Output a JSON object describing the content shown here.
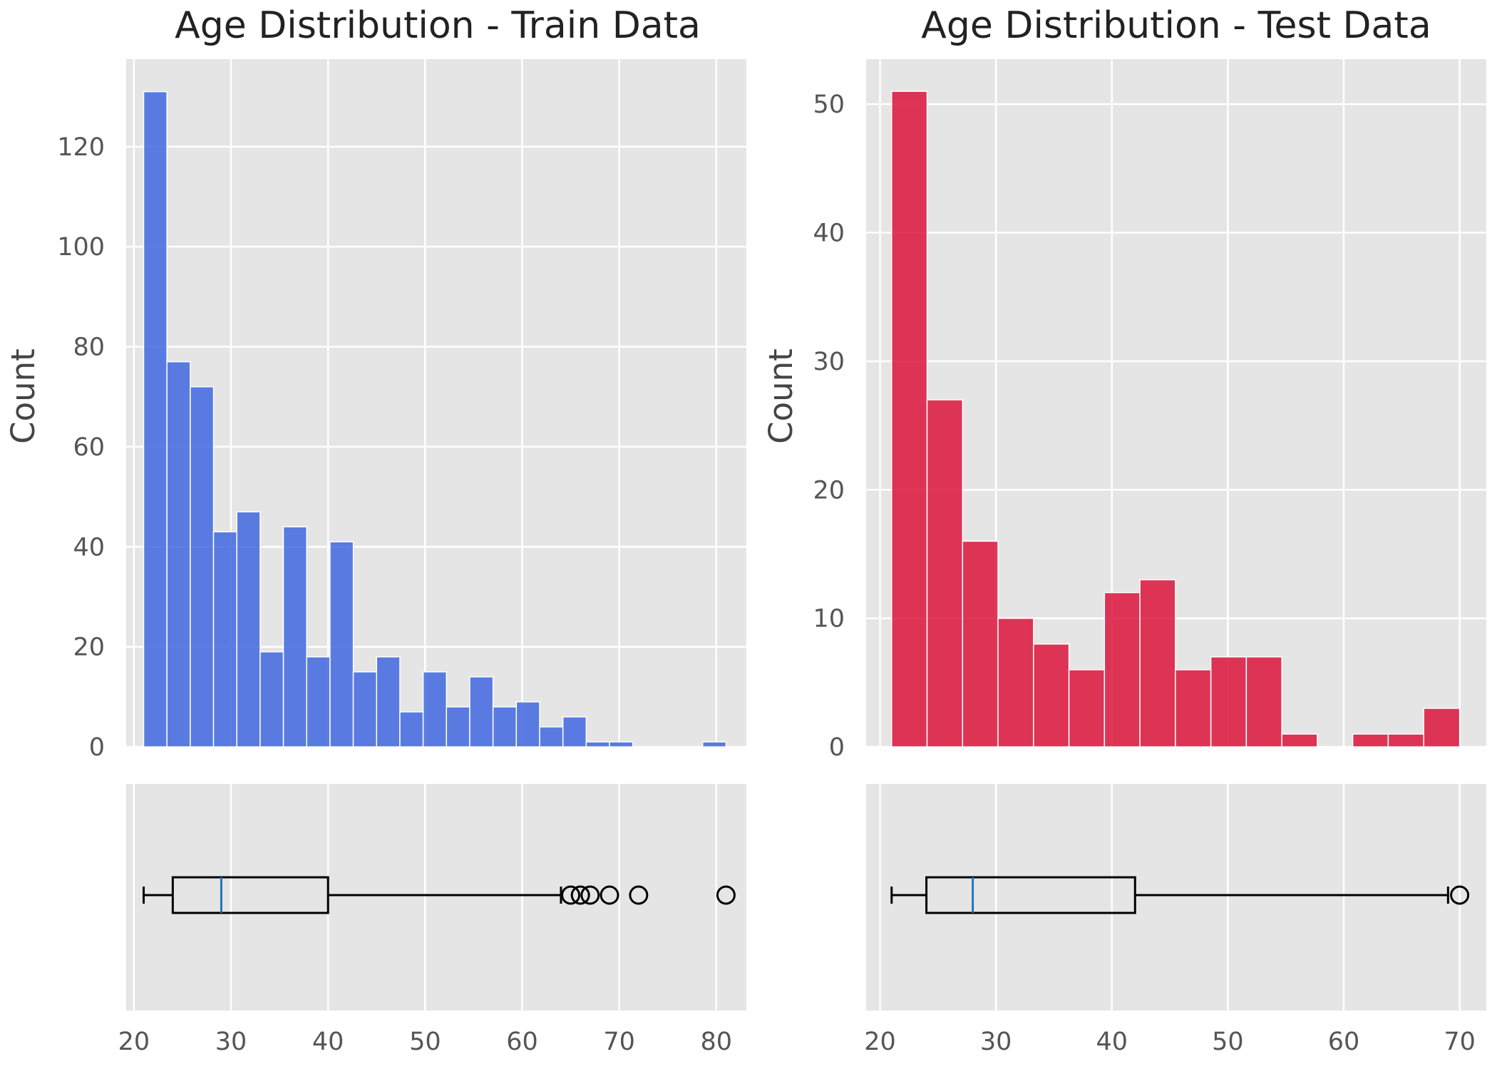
{
  "chart_data": [
    {
      "id": "train",
      "type": "bar",
      "title": "Age Distribution - Train Data",
      "xlabel": "",
      "ylabel": "Count",
      "grid": true,
      "bar_color": "#4169E1",
      "bin_edges": [
        21,
        23.4,
        25.8,
        28.2,
        30.6,
        33,
        35.4,
        37.8,
        40.2,
        42.6,
        45,
        47.4,
        49.8,
        52.2,
        54.6,
        57,
        59.4,
        61.8,
        64.2,
        66.6,
        69,
        71.4,
        73.8,
        76.2,
        78.6,
        81
      ],
      "values": [
        131,
        77,
        72,
        43,
        47,
        19,
        44,
        18,
        41,
        15,
        18,
        7,
        15,
        8,
        14,
        8,
        9,
        4,
        6,
        1,
        1,
        0,
        0,
        0,
        1
      ],
      "xlim": [
        19.2,
        83.1
      ],
      "ylim": [
        0,
        137.5
      ],
      "xticks": [
        20,
        30,
        40,
        50,
        60,
        70,
        80
      ],
      "yticks": [
        0,
        20,
        40,
        60,
        80,
        100,
        120
      ],
      "boxplot": {
        "whisker_low": 21,
        "q1": 24,
        "median": 29,
        "q3": 40,
        "whisker_high": 64,
        "outliers": [
          65,
          66,
          67,
          69,
          72,
          81
        ]
      }
    },
    {
      "id": "test",
      "type": "bar",
      "title": "Age Distribution - Test Data",
      "xlabel": "",
      "ylabel": "Count",
      "grid": true,
      "bar_color": "#DC143C",
      "bin_edges": [
        21,
        24.06,
        27.12,
        30.18,
        33.24,
        36.3,
        39.36,
        42.42,
        45.48,
        48.54,
        51.6,
        54.66,
        57.72,
        60.78,
        63.84,
        66.9,
        70
      ],
      "values": [
        51,
        27,
        16,
        10,
        8,
        6,
        12,
        13,
        6,
        7,
        7,
        1,
        0,
        1,
        1,
        3
      ],
      "xlim": [
        18.8,
        72.3
      ],
      "ylim": [
        0,
        53.5
      ],
      "xticks": [
        20,
        30,
        40,
        50,
        60,
        70
      ],
      "yticks": [
        0,
        10,
        20,
        30,
        40,
        50
      ],
      "boxplot": {
        "whisker_low": 21,
        "q1": 24,
        "median": 28,
        "q3": 42,
        "whisker_high": 69,
        "outliers": [
          70
        ]
      }
    }
  ],
  "colors": {
    "panel_background": "#E5E5E5",
    "gridline": "#FFFFFF",
    "median_line": "#1F77B4",
    "box_line": "#000000"
  }
}
